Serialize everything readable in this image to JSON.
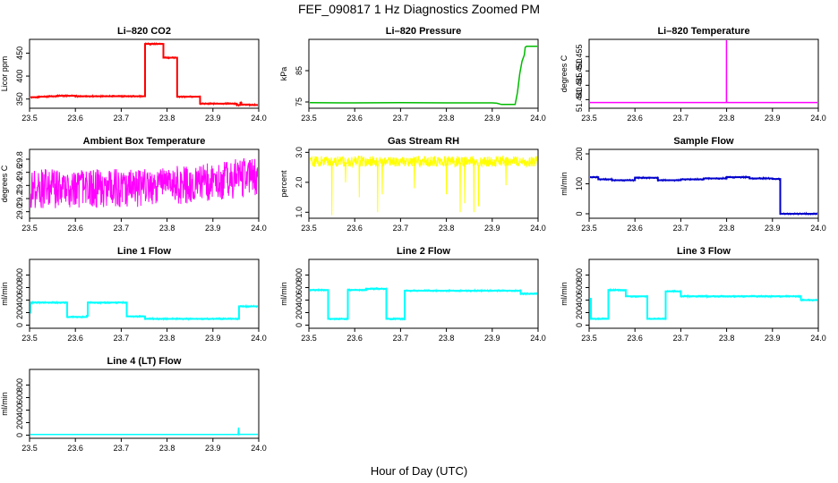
{
  "figure": {
    "title": "FEF_090817  1 Hz Diagnostics Zoomed PM",
    "xlabel": "Hour of Day (UTC)"
  },
  "chart_data": [
    {
      "type": "line",
      "title": "Li–820 CO2",
      "ylabel": "Licor ppm",
      "color": "#ff0000",
      "xlim": [
        23.5,
        24.0
      ],
      "ylim": [
        330,
        480
      ],
      "xticks": [
        "23.5",
        "23.6",
        "23.7",
        "23.8",
        "23.9",
        "24.0"
      ],
      "yticks": [
        {
          "v": 350,
          "label": "350"
        },
        {
          "v": 400,
          "label": "400"
        },
        {
          "v": 450,
          "label": "450"
        }
      ],
      "series": [
        {
          "style": "step",
          "x": [
            23.5,
            23.52,
            23.54,
            23.56,
            23.6,
            23.65,
            23.7,
            23.75,
            23.752,
            23.79,
            23.792,
            23.82,
            23.822,
            23.85,
            23.87,
            23.872,
            23.95,
            23.952,
            23.96,
            23.962,
            23.98,
            24.0
          ],
          "y": [
            354,
            355,
            356,
            357,
            356,
            356,
            356,
            356,
            470,
            470,
            440,
            440,
            355,
            355,
            355,
            340,
            340,
            337,
            342,
            338,
            337,
            337
          ]
        }
      ]
    },
    {
      "type": "line",
      "title": "Li–820 Pressure",
      "ylabel": "kPa",
      "color": "#00bb00",
      "xlim": [
        23.5,
        24.0
      ],
      "ylim": [
        73,
        95
      ],
      "xticks": [
        "23.5",
        "23.6",
        "23.7",
        "23.8",
        "23.9",
        "24.0"
      ],
      "yticks": [
        {
          "v": 75,
          "label": "75"
        },
        {
          "v": 85,
          "label": "85"
        }
      ],
      "series": [
        {
          "style": "line",
          "x": [
            23.5,
            23.6,
            23.7,
            23.8,
            23.9,
            23.91,
            23.92,
            23.93,
            23.95,
            23.955,
            23.96,
            23.965,
            23.97,
            23.972,
            23.975,
            23.98,
            24.0
          ],
          "y": [
            74.8,
            74.7,
            74.8,
            74.7,
            74.7,
            74.6,
            74.2,
            74.2,
            74.2,
            78,
            84,
            88,
            90,
            92.5,
            92.8,
            92.8,
            92.8
          ]
        }
      ]
    },
    {
      "type": "line",
      "title": "Li–820 Temperature",
      "ylabel": "degrees C",
      "color": "#ff00ff",
      "xlim": [
        23.5,
        24.0
      ],
      "ylim": [
        51.437,
        51.461
      ],
      "xticks": [
        "23.5",
        "23.6",
        "23.7",
        "23.8",
        "23.9",
        "24.0"
      ],
      "yticks": [
        {
          "v": 51.44,
          "label": "51.440"
        },
        {
          "v": 51.445,
          "label": "51.445"
        },
        {
          "v": 51.45,
          "label": "51.450"
        },
        {
          "v": 51.455,
          "label": "51.455"
        }
      ],
      "series": [
        {
          "style": "line",
          "x": [
            23.5,
            23.7996,
            23.7997,
            23.7998,
            23.9995,
            23.9996,
            23.9997,
            24.0
          ],
          "y": [
            51.439,
            51.439,
            51.461,
            51.439,
            51.439,
            51.461,
            51.439,
            51.439
          ]
        }
      ]
    },
    {
      "type": "line",
      "title": "Ambient Box Temperature",
      "ylabel": "degrees C",
      "color": "#ff00ff",
      "xlim": [
        23.5,
        24.0
      ],
      "ylim": [
        28.9,
        29.95
      ],
      "xticks": [
        "23.5",
        "23.6",
        "23.7",
        "23.8",
        "23.9",
        "24.0"
      ],
      "yticks": [
        {
          "v": 29.0,
          "label": "29.0"
        },
        {
          "v": 29.2,
          "label": "29.2"
        },
        {
          "v": 29.4,
          "label": "29.4"
        },
        {
          "v": 29.6,
          "label": "29.6"
        },
        {
          "v": 29.8,
          "label": "29.8"
        }
      ],
      "series": [
        {
          "style": "noisy",
          "center": 29.35,
          "amp": 0.3,
          "x": [
            23.5,
            23.6,
            23.7,
            23.8,
            23.9,
            24.0
          ],
          "y": [
            29.35,
            29.35,
            29.35,
            29.4,
            29.45,
            29.55
          ]
        }
      ]
    },
    {
      "type": "line",
      "title": "Gas Stream RH",
      "ylabel": "percent",
      "color": "#ffff00",
      "xlim": [
        23.5,
        24.0
      ],
      "ylim": [
        0.8,
        3.1
      ],
      "xticks": [
        "23.5",
        "23.6",
        "23.7",
        "23.8",
        "23.9",
        "24.0"
      ],
      "yticks": [
        {
          "v": 1.0,
          "label": "1.0"
        },
        {
          "v": 2.0,
          "label": "2.0"
        },
        {
          "v": 3.0,
          "label": "3.0"
        }
      ],
      "series": [
        {
          "style": "noisy",
          "amp": 0.18,
          "x": [
            23.5,
            24.0
          ],
          "y": [
            2.7,
            2.7
          ],
          "spikes": [
            [
              23.55,
              0.9
            ],
            [
              23.58,
              2.0
            ],
            [
              23.61,
              1.5
            ],
            [
              23.65,
              1.0
            ],
            [
              23.66,
              1.6
            ],
            [
              23.73,
              1.8
            ],
            [
              23.8,
              1.6
            ],
            [
              23.83,
              1.0
            ],
            [
              23.84,
              1.3
            ],
            [
              23.86,
              1.0
            ],
            [
              23.87,
              1.2
            ],
            [
              23.93,
              1.9
            ]
          ]
        }
      ]
    },
    {
      "type": "line",
      "title": "Sample Flow",
      "ylabel": "ml/min",
      "color": "#0000cc",
      "xlim": [
        23.5,
        24.0
      ],
      "ylim": [
        -15,
        215
      ],
      "xticks": [
        "23.5",
        "23.6",
        "23.7",
        "23.8",
        "23.9",
        "24.0"
      ],
      "yticks": [
        {
          "v": 0,
          "label": "0"
        },
        {
          "v": 100,
          "label": "100"
        },
        {
          "v": 200,
          "label": "200"
        }
      ],
      "series": [
        {
          "style": "step",
          "x": [
            23.5,
            23.52,
            23.55,
            23.6,
            23.65,
            23.7,
            23.75,
            23.8,
            23.85,
            23.9,
            23.915,
            23.917,
            23.95,
            24.0
          ],
          "y": [
            122,
            115,
            112,
            120,
            112,
            115,
            118,
            122,
            118,
            116,
            116,
            0,
            0,
            0
          ]
        }
      ]
    },
    {
      "type": "line",
      "title": "Line 1 Flow",
      "ylabel": "ml/min",
      "color": "#00ffff",
      "xlim": [
        23.5,
        24.0
      ],
      "ylim": [
        -50,
        1050
      ],
      "xticks": [
        "23.5",
        "23.6",
        "23.7",
        "23.8",
        "23.9",
        "24.0"
      ],
      "yticks": [
        {
          "v": 0,
          "label": "0"
        },
        {
          "v": 200,
          "label": "200"
        },
        {
          "v": 400,
          "label": "400"
        },
        {
          "v": 600,
          "label": "600"
        },
        {
          "v": 800,
          "label": "800"
        }
      ],
      "series": [
        {
          "style": "step",
          "x": [
            23.5,
            23.502,
            23.58,
            23.582,
            23.625,
            23.627,
            23.71,
            23.712,
            23.75,
            23.752,
            23.955,
            23.957,
            24.0
          ],
          "y": [
            200,
            360,
            360,
            130,
            150,
            360,
            360,
            140,
            140,
            100,
            100,
            300,
            310
          ]
        }
      ]
    },
    {
      "type": "line",
      "title": "Line 2 Flow",
      "ylabel": "ml/min",
      "color": "#00ffff",
      "xlim": [
        23.5,
        24.0
      ],
      "ylim": [
        -50,
        1050
      ],
      "xticks": [
        "23.5",
        "23.6",
        "23.7",
        "23.8",
        "23.9",
        "24.0"
      ],
      "yticks": [
        {
          "v": 0,
          "label": "0"
        },
        {
          "v": 200,
          "label": "200"
        },
        {
          "v": 400,
          "label": "400"
        },
        {
          "v": 600,
          "label": "600"
        },
        {
          "v": 800,
          "label": "800"
        }
      ],
      "series": [
        {
          "style": "step",
          "x": [
            23.5,
            23.54,
            23.542,
            23.583,
            23.585,
            23.625,
            23.667,
            23.669,
            23.707,
            23.709,
            23.96,
            23.962,
            24.0
          ],
          "y": [
            560,
            560,
            100,
            100,
            560,
            580,
            580,
            100,
            100,
            550,
            550,
            500,
            500
          ]
        }
      ]
    },
    {
      "type": "line",
      "title": "Line 3 Flow",
      "ylabel": "ml/min",
      "color": "#00ffff",
      "xlim": [
        23.5,
        24.0
      ],
      "ylim": [
        -50,
        1050
      ],
      "xticks": [
        "23.5",
        "23.6",
        "23.7",
        "23.8",
        "23.9",
        "24.0"
      ],
      "yticks": [
        {
          "v": 0,
          "label": "0"
        },
        {
          "v": 200,
          "label": "200"
        },
        {
          "v": 400,
          "label": "400"
        },
        {
          "v": 600,
          "label": "600"
        },
        {
          "v": 800,
          "label": "800"
        }
      ],
      "series": [
        {
          "style": "step",
          "x": [
            23.5,
            23.502,
            23.504,
            23.54,
            23.542,
            23.58,
            23.625,
            23.627,
            23.665,
            23.667,
            23.7,
            23.96,
            23.962,
            24.0
          ],
          "y": [
            100,
            420,
            100,
            100,
            560,
            460,
            460,
            100,
            100,
            540,
            460,
            460,
            400,
            420
          ]
        }
      ]
    },
    {
      "type": "line",
      "title": "Line 4 (LT) Flow",
      "ylabel": "ml/min",
      "color": "#00ffff",
      "xlim": [
        23.5,
        24.0
      ],
      "ylim": [
        -50,
        1050
      ],
      "xticks": [
        "23.5",
        "23.6",
        "23.7",
        "23.8",
        "23.9",
        "24.0"
      ],
      "yticks": [
        {
          "v": 0,
          "label": "0"
        },
        {
          "v": 200,
          "label": "200"
        },
        {
          "v": 400,
          "label": "400"
        },
        {
          "v": 600,
          "label": "600"
        },
        {
          "v": 800,
          "label": "800"
        }
      ],
      "series": [
        {
          "style": "line",
          "x": [
            23.5,
            23.9,
            23.955,
            23.956,
            23.957,
            23.958,
            24.0
          ],
          "y": [
            10,
            10,
            10,
            120,
            10,
            15,
            12
          ]
        }
      ]
    }
  ]
}
